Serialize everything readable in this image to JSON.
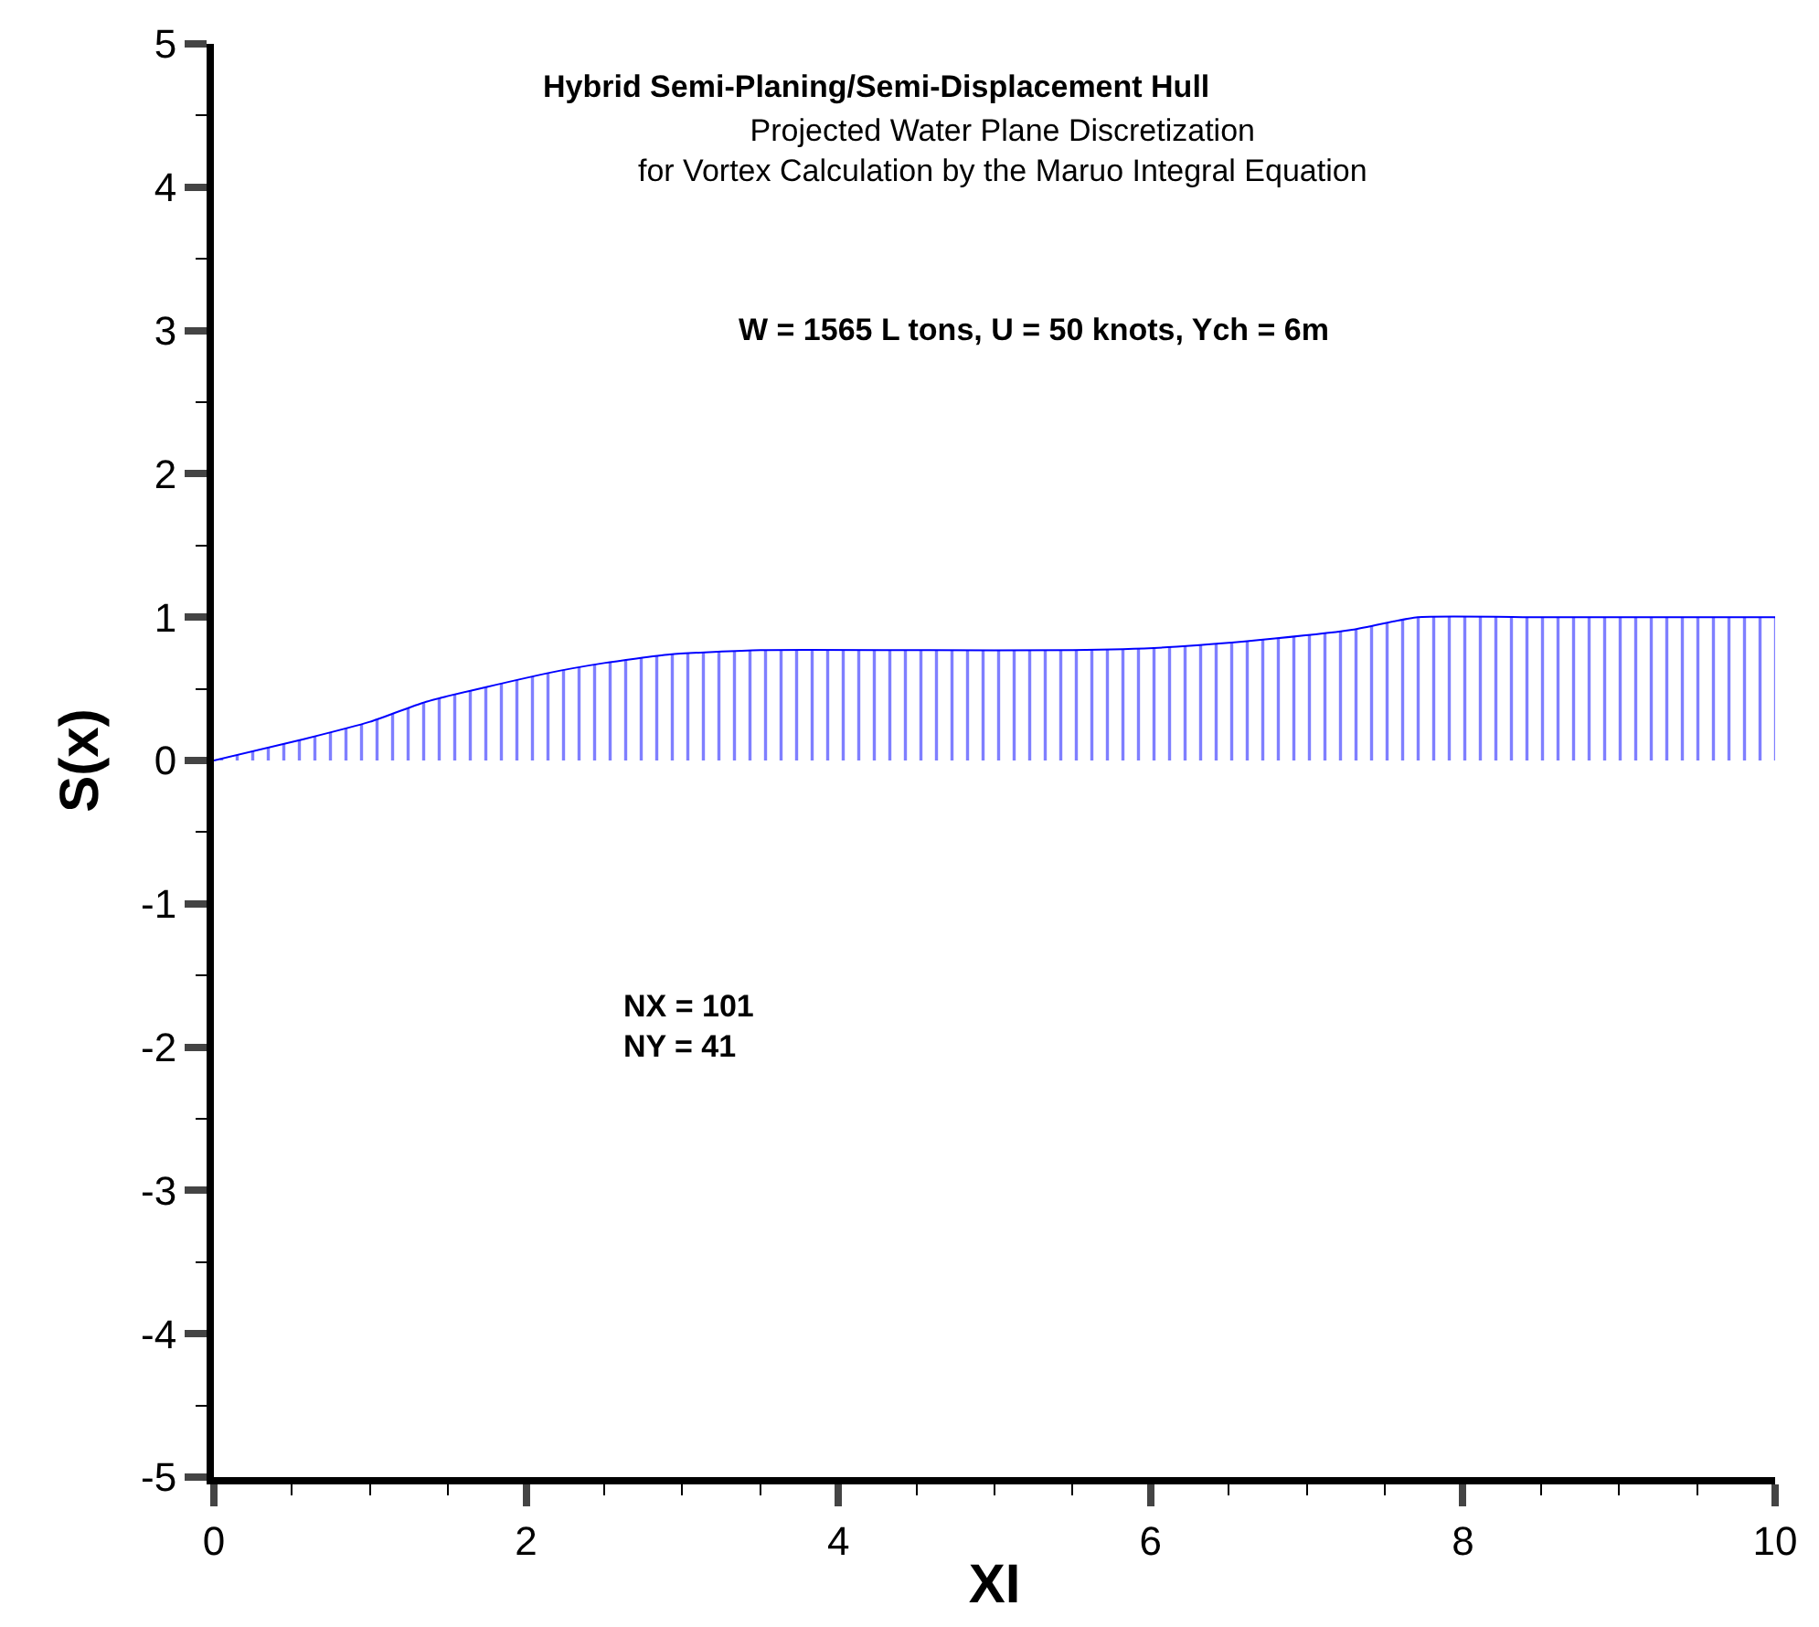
{
  "chart_data": {
    "type": "area",
    "title": "Hybrid Semi-Planing/Semi-Displacement Hull",
    "subtitle": "Projected Water Plane Discretization\nfor Vortex Calculation by the Maruo Integral Equation",
    "xlabel": "XI",
    "ylabel": "S(x)",
    "annotations": [
      "W = 1565 L tons, U = 50 knots, Ych = 6m",
      "NX = 101\nNY = 41"
    ],
    "x": [
      0,
      0.58,
      1.0,
      1.36,
      2.14,
      2.5,
      2.92,
      3.5,
      4.5,
      5.5,
      6.11,
      6.69,
      7.28,
      7.71,
      8.5,
      9.5,
      10
    ],
    "series": [
      {
        "color": "#0000ff",
        "values": [
          0,
          0.15,
          0.27,
          0.41,
          0.61,
          0.68,
          0.74,
          0.77,
          0.77,
          0.77,
          0.79,
          0.84,
          0.91,
          1.0,
          1.0,
          1.0,
          1.0
        ]
      }
    ],
    "xlim": [
      0,
      10
    ],
    "ylim": [
      -5,
      5
    ],
    "xticks": [
      0,
      2,
      4,
      6,
      8,
      10
    ],
    "yticks": [
      -5,
      -4,
      -3,
      -2,
      -1,
      0,
      1,
      2,
      3,
      4,
      5
    ],
    "marker": "none",
    "line_style": "solid"
  }
}
